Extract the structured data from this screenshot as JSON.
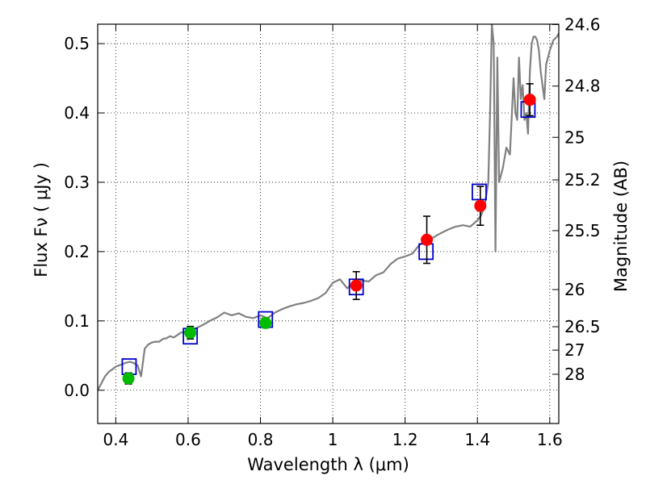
{
  "chart_data": {
    "type": "scatter",
    "xlabel": "Wavelength  λ (μm)",
    "ylabel": "Flux  Fν  ( μJy )",
    "ylabel_right": "Magnitude (AB)",
    "xlim": [
      0.35,
      1.625
    ],
    "ylim": [
      -0.048,
      0.528
    ],
    "grid": true,
    "x_ticks": [
      0.4,
      0.6,
      0.8,
      1.0,
      1.2,
      1.4,
      1.6
    ],
    "x_tick_labels": [
      "0.4",
      "0.6",
      "0.8",
      "1",
      "1.2",
      "1.4",
      "1.6"
    ],
    "y_ticks": [
      0.0,
      0.1,
      0.2,
      0.3,
      0.4,
      0.5
    ],
    "y_tick_labels": [
      "0.0",
      "0.1",
      "0.2",
      "0.3",
      "0.4",
      "0.5"
    ],
    "right_axis_ticks": [
      {
        "label": "24.6",
        "flux": 0.5275
      },
      {
        "label": "24.8",
        "flux": 0.4387
      },
      {
        "label": "25",
        "flux": 0.3648
      },
      {
        "label": "25.2",
        "flux": 0.3034
      },
      {
        "label": "25.5",
        "flux": 0.2302
      },
      {
        "label": "26",
        "flux": 0.1452
      },
      {
        "label": "26.5",
        "flux": 0.0916
      },
      {
        "label": "27",
        "flux": 0.0578
      },
      {
        "label": "28",
        "flux": 0.023
      }
    ],
    "series": [
      {
        "marker": "circle",
        "color": "#00bb00",
        "points": [
          {
            "x": 0.435,
            "y": 0.017,
            "err": 0.008
          },
          {
            "x": 0.606,
            "y": 0.083,
            "err": 0.009
          },
          {
            "x": 0.814,
            "y": 0.097,
            "err": 0.007
          }
        ]
      },
      {
        "marker": "circle",
        "color": "#ff0000",
        "points": [
          {
            "x": 1.065,
            "y": 0.151,
            "err": 0.02
          },
          {
            "x": 1.26,
            "y": 0.217,
            "err": 0.034
          },
          {
            "x": 1.408,
            "y": 0.266,
            "err": 0.028
          },
          {
            "x": 1.545,
            "y": 0.419,
            "err": 0.023
          }
        ]
      },
      {
        "marker": "open-square",
        "color": "#0000cc",
        "points": [
          {
            "x": 0.437,
            "y": 0.034
          },
          {
            "x": 0.606,
            "y": 0.078
          },
          {
            "x": 0.814,
            "y": 0.102
          },
          {
            "x": 1.065,
            "y": 0.149
          },
          {
            "x": 1.258,
            "y": 0.2
          },
          {
            "x": 1.405,
            "y": 0.286
          },
          {
            "x": 1.54,
            "y": 0.405
          }
        ]
      },
      {
        "type": "line",
        "color": "#808080",
        "x": [
          0.35,
          0.36,
          0.37,
          0.38,
          0.39,
          0.4,
          0.41,
          0.42,
          0.43,
          0.44,
          0.45,
          0.46,
          0.47,
          0.48,
          0.49,
          0.5,
          0.51,
          0.52,
          0.53,
          0.54,
          0.55,
          0.56,
          0.58,
          0.6,
          0.62,
          0.64,
          0.66,
          0.68,
          0.7,
          0.72,
          0.74,
          0.76,
          0.78,
          0.8,
          0.82,
          0.84,
          0.86,
          0.88,
          0.9,
          0.92,
          0.94,
          0.96,
          0.98,
          1.0,
          1.02,
          1.04,
          1.06,
          1.08,
          1.1,
          1.12,
          1.14,
          1.16,
          1.18,
          1.2,
          1.22,
          1.24,
          1.26,
          1.28,
          1.3,
          1.32,
          1.34,
          1.36,
          1.38,
          1.4,
          1.41,
          1.42,
          1.43,
          1.435,
          1.44,
          1.445,
          1.45,
          1.455,
          1.46,
          1.47,
          1.48,
          1.49,
          1.5,
          1.505,
          1.51,
          1.515,
          1.52,
          1.525,
          1.53,
          1.535,
          1.54,
          1.545,
          1.55,
          1.555,
          1.56,
          1.565,
          1.57,
          1.575,
          1.58,
          1.585,
          1.59,
          1.595,
          1.6,
          1.61,
          1.62,
          1.625
        ],
        "y": [
          0.0,
          0.01,
          0.02,
          0.026,
          0.03,
          0.034,
          0.036,
          0.038,
          0.04,
          0.041,
          0.039,
          0.036,
          0.02,
          0.06,
          0.066,
          0.069,
          0.07,
          0.07,
          0.074,
          0.075,
          0.078,
          0.076,
          0.083,
          0.086,
          0.089,
          0.094,
          0.1,
          0.105,
          0.112,
          0.108,
          0.111,
          0.106,
          0.104,
          0.108,
          0.104,
          0.112,
          0.117,
          0.121,
          0.124,
          0.126,
          0.129,
          0.133,
          0.14,
          0.155,
          0.16,
          0.147,
          0.156,
          0.158,
          0.157,
          0.166,
          0.17,
          0.182,
          0.19,
          0.193,
          0.197,
          0.21,
          0.215,
          0.221,
          0.227,
          0.232,
          0.236,
          0.238,
          0.236,
          0.245,
          0.252,
          0.266,
          0.3,
          0.4,
          0.528,
          0.5,
          0.2,
          0.48,
          0.3,
          0.32,
          0.35,
          0.34,
          0.45,
          0.4,
          0.39,
          0.48,
          0.42,
          0.44,
          0.39,
          0.4,
          0.37,
          0.46,
          0.5,
          0.51,
          0.51,
          0.505,
          0.49,
          0.46,
          0.44,
          0.42,
          0.47,
          0.48,
          0.49,
          0.505,
          0.51,
          0.515
        ]
      }
    ]
  }
}
